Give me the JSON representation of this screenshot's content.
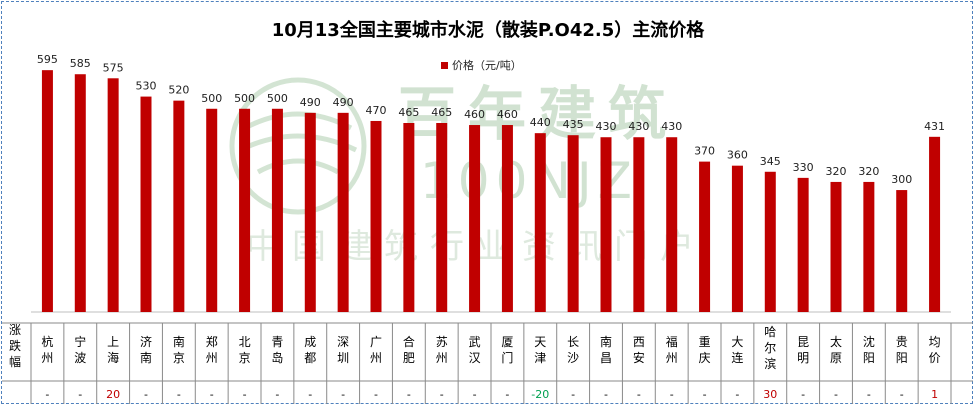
{
  "chart_data": {
    "type": "bar",
    "title": "10月13全国主要城市水泥（散装P.O42.5）主流价格",
    "series": [
      {
        "name": "价格（元/吨）",
        "color": "#c00000",
        "values": [
          595,
          585,
          575,
          530,
          520,
          500,
          500,
          500,
          490,
          490,
          470,
          465,
          465,
          460,
          460,
          440,
          435,
          430,
          430,
          430,
          370,
          360,
          345,
          330,
          320,
          320,
          300,
          431
        ]
      }
    ],
    "categories": [
      [
        "杭",
        "州"
      ],
      [
        "宁",
        "波"
      ],
      [
        "上",
        "海"
      ],
      [
        "济",
        "南"
      ],
      [
        "南",
        "京"
      ],
      [
        "郑",
        "州"
      ],
      [
        "北",
        "京"
      ],
      [
        "青",
        "岛"
      ],
      [
        "成",
        "都"
      ],
      [
        "深",
        "圳"
      ],
      [
        "广",
        "州"
      ],
      [
        "合",
        "肥"
      ],
      [
        "苏",
        "州"
      ],
      [
        "武",
        "汉"
      ],
      [
        "厦",
        "门"
      ],
      [
        "天",
        "津"
      ],
      [
        "长",
        "沙"
      ],
      [
        "南",
        "昌"
      ],
      [
        "西",
        "安"
      ],
      [
        "福",
        "州"
      ],
      [
        "重",
        "庆"
      ],
      [
        "大",
        "连"
      ],
      [
        "哈",
        "尔",
        "滨"
      ],
      [
        "昆",
        "明"
      ],
      [
        "太",
        "原"
      ],
      [
        "沈",
        "阳"
      ],
      [
        "贵",
        "阳"
      ],
      [
        "均",
        "价"
      ]
    ],
    "ylim": [
      0,
      620
    ],
    "table": {
      "row_header": [
        "涨",
        "跌",
        "幅"
      ],
      "changes": [
        "-",
        "-",
        "20",
        "-",
        "-",
        "-",
        "-",
        "-",
        "-",
        "-",
        "-",
        "-",
        "-",
        "-",
        "-",
        "-20",
        "-",
        "-",
        "-",
        "-",
        "-",
        "-",
        "30",
        "-",
        "-",
        "-",
        "-",
        "1"
      ],
      "colors": {
        "up": "#c00000",
        "down": "#00a050",
        "flat": "#000000"
      }
    }
  },
  "watermark": {
    "brand": "百年建筑",
    "code": "100NJZ",
    "slogan": "中国建筑行业资讯门户",
    "color": "#c9dec9"
  }
}
